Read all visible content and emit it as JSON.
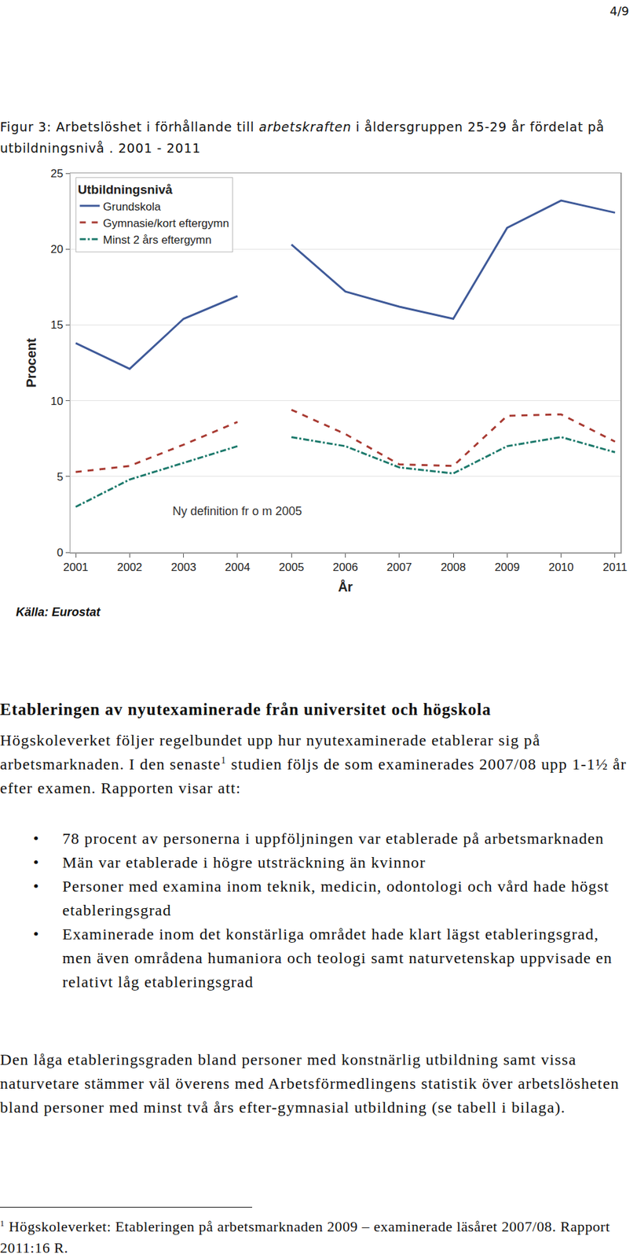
{
  "page_number": "4/9",
  "figure_caption": [
    {
      "text": "Figur 3: Arbetslöshet i förhållande till "
    },
    {
      "italic": "arbetskraften"
    },
    {
      "text": " i åldersgruppen 25-29 år fördelat på utbildningsnivå . 2001 - 2011"
    }
  ],
  "chart_data": {
    "type": "line",
    "x": [
      2001,
      2002,
      2003,
      2004,
      null,
      2005,
      2006,
      2007,
      2008,
      2009,
      2010,
      2011
    ],
    "series": [
      {
        "name": "Grundskola",
        "color": "#3f5a99",
        "line_style": "solid",
        "values": [
          13.8,
          12.1,
          15.4,
          16.9,
          null,
          20.3,
          17.2,
          16.2,
          15.4,
          21.4,
          23.2,
          22.4
        ]
      },
      {
        "name": "Gymnasie/kort eftergymn",
        "color": "#a83a32",
        "line_style": "dash",
        "values": [
          5.3,
          5.7,
          7.1,
          8.6,
          null,
          9.4,
          7.8,
          5.8,
          5.7,
          9.0,
          9.1,
          7.3
        ]
      },
      {
        "name": "Minst 2 års eftergymn",
        "color": "#1d7a6c",
        "line_style": "dashdot",
        "values": [
          3.0,
          4.8,
          5.9,
          7.0,
          null,
          7.6,
          7.0,
          5.6,
          5.2,
          7.0,
          7.6,
          6.6
        ]
      }
    ],
    "xlim": [
      2000.9,
      2011.1
    ],
    "xticks": [
      2001,
      2002,
      2003,
      2004,
      2005,
      2006,
      2007,
      2008,
      2009,
      2010,
      2011
    ],
    "ylim": [
      0,
      25
    ],
    "yticks": [
      0,
      5,
      10,
      15,
      20,
      25
    ],
    "xlabel": "År",
    "ylabel": "Procent",
    "legend_title": "Utbildningsnivå",
    "legend": "upper left",
    "grid": "y",
    "annotations": [
      {
        "text": "Ny definition fr o m 2005",
        "x": 2004.0,
        "y": 2.7
      }
    ],
    "source": "Källa: Eurostat"
  },
  "heading": "Etableringen av nyutexaminerade från universitet och högskola",
  "paragraph_1": [
    {
      "text": "Högskoleverket följer regelbundet upp hur nyutexaminerade etablerar sig på arbetsmarknaden. I den senaste"
    },
    {
      "sup": "1"
    },
    {
      "text": " studien följs de som examinerades 2007/08 upp 1-1½ år efter examen. Rapporten visar att:"
    }
  ],
  "bullets": [
    "78 procent av personerna i uppföljningen var etablerade på arbetsmarknaden",
    "Män var etablerade i högre utsträckning än kvinnor",
    "Personer med examina inom teknik, medicin, odontologi och vård hade högst etableringsgrad",
    "Examinerade inom det konstärliga området hade klart lägst etableringsgrad, men även områdena humaniora och teologi samt naturvetenskap uppvisade en relativt låg etableringsgrad"
  ],
  "bullet_symbol": "•",
  "paragraph_2": [
    {
      "text": "Den låga etableringsgraden bland personer med konstnärlig utbildning samt vissa naturvetare stämmer väl överens med Arbetsförmedlingens statistik över arbetslösheten bland personer med minst två års efter-gymnasial utbildning (se tabell i bilaga)."
    }
  ],
  "footnote": [
    {
      "sup": "1"
    },
    {
      "text": " Högskoleverket: Etableringen på arbetsmarknaden 2009 – examinerade läsåret 2007/08. Rapport 2011:16 R."
    }
  ]
}
